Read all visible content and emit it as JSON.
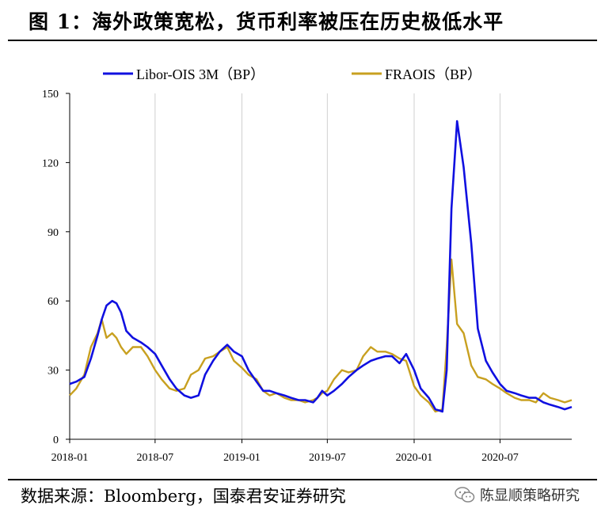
{
  "title": "图 1：海外政策宽松，货币利率被压在历史极低水平",
  "source": "数据来源：Bloomberg，国泰君安证券研究",
  "watermark": {
    "text": "陈显顺策略研究",
    "icon": "wechat-icon"
  },
  "colors": {
    "series1": "#1010e0",
    "series2": "#c8a020",
    "grid": "#d0d0d0"
  },
  "chart_data": {
    "type": "line",
    "grid": true,
    "legend_position": "top",
    "ylim": [
      0,
      150
    ],
    "yticks": [
      0,
      30,
      60,
      90,
      120,
      150
    ],
    "xticks": [
      "2018-01",
      "2018-07",
      "2019-01",
      "2019-07",
      "2020-01",
      "2020-07"
    ],
    "xlim": [
      "2018-01-01",
      "2020-11-30"
    ],
    "series": [
      {
        "name": "Libor-OIS 3M（BP）",
        "color": "#1010e0",
        "x": [
          "2018-01-01",
          "2018-01-15",
          "2018-02-01",
          "2018-02-15",
          "2018-03-01",
          "2018-03-10",
          "2018-03-20",
          "2018-04-01",
          "2018-04-10",
          "2018-04-20",
          "2018-05-01",
          "2018-05-15",
          "2018-06-01",
          "2018-06-15",
          "2018-07-01",
          "2018-07-15",
          "2018-08-01",
          "2018-08-15",
          "2018-09-01",
          "2018-09-15",
          "2018-10-01",
          "2018-10-15",
          "2018-11-01",
          "2018-11-15",
          "2018-12-01",
          "2018-12-15",
          "2019-01-01",
          "2019-01-15",
          "2019-02-01",
          "2019-02-15",
          "2019-03-01",
          "2019-03-15",
          "2019-04-01",
          "2019-04-15",
          "2019-05-01",
          "2019-05-15",
          "2019-06-01",
          "2019-06-10",
          "2019-06-20",
          "2019-07-01",
          "2019-07-15",
          "2019-08-01",
          "2019-08-15",
          "2019-09-01",
          "2019-09-15",
          "2019-10-01",
          "2019-10-15",
          "2019-11-01",
          "2019-11-15",
          "2019-12-01",
          "2019-12-15",
          "2020-01-01",
          "2020-01-15",
          "2020-02-01",
          "2020-02-15",
          "2020-03-01",
          "2020-03-10",
          "2020-03-20",
          "2020-04-01",
          "2020-04-15",
          "2020-05-01",
          "2020-05-15",
          "2020-06-01",
          "2020-06-15",
          "2020-07-01",
          "2020-07-15",
          "2020-08-01",
          "2020-08-15",
          "2020-09-01",
          "2020-09-15",
          "2020-10-01",
          "2020-10-15",
          "2020-11-01",
          "2020-11-15",
          "2020-11-30"
        ],
        "values": [
          24,
          25,
          27,
          35,
          45,
          52,
          58,
          60,
          59,
          55,
          47,
          44,
          42,
          40,
          37,
          32,
          26,
          22,
          19,
          18,
          19,
          28,
          34,
          38,
          41,
          38,
          36,
          30,
          25,
          21,
          21,
          20,
          19,
          18,
          17,
          17,
          16,
          18,
          21,
          19,
          21,
          24,
          27,
          30,
          32,
          34,
          35,
          36,
          36,
          33,
          37,
          30,
          22,
          18,
          13,
          12,
          30,
          100,
          138,
          118,
          85,
          48,
          34,
          29,
          24,
          21,
          20,
          19,
          18,
          18,
          16,
          15,
          14,
          13,
          14
        ]
      },
      {
        "name": "FRAOIS（BP）",
        "color": "#c8a020",
        "x": [
          "2018-01-01",
          "2018-01-15",
          "2018-02-01",
          "2018-02-15",
          "2018-03-01",
          "2018-03-10",
          "2018-03-20",
          "2018-04-01",
          "2018-04-10",
          "2018-04-20",
          "2018-05-01",
          "2018-05-15",
          "2018-06-01",
          "2018-06-15",
          "2018-07-01",
          "2018-07-15",
          "2018-08-01",
          "2018-08-15",
          "2018-09-01",
          "2018-09-15",
          "2018-10-01",
          "2018-10-15",
          "2018-11-01",
          "2018-11-15",
          "2018-12-01",
          "2018-12-15",
          "2019-01-01",
          "2019-01-15",
          "2019-02-01",
          "2019-02-15",
          "2019-03-01",
          "2019-03-15",
          "2019-04-01",
          "2019-04-15",
          "2019-05-01",
          "2019-05-15",
          "2019-06-01",
          "2019-06-10",
          "2019-06-20",
          "2019-07-01",
          "2019-07-15",
          "2019-08-01",
          "2019-08-15",
          "2019-09-01",
          "2019-09-15",
          "2019-10-01",
          "2019-10-15",
          "2019-11-01",
          "2019-11-15",
          "2019-12-01",
          "2019-12-15",
          "2020-01-01",
          "2020-01-15",
          "2020-02-01",
          "2020-02-15",
          "2020-03-01",
          "2020-03-10",
          "2020-03-20",
          "2020-04-01",
          "2020-04-15",
          "2020-05-01",
          "2020-05-15",
          "2020-06-01",
          "2020-06-15",
          "2020-07-01",
          "2020-07-15",
          "2020-08-01",
          "2020-08-15",
          "2020-09-01",
          "2020-09-15",
          "2020-10-01",
          "2020-10-15",
          "2020-11-01",
          "2020-11-15",
          "2020-11-30"
        ],
        "values": [
          19,
          22,
          28,
          40,
          46,
          52,
          44,
          46,
          44,
          40,
          37,
          40,
          40,
          36,
          30,
          26,
          22,
          21,
          22,
          28,
          30,
          35,
          36,
          38,
          40,
          34,
          31,
          28,
          26,
          21,
          19,
          20,
          18,
          17,
          17,
          16,
          17,
          18,
          20,
          21,
          26,
          30,
          29,
          30,
          36,
          40,
          38,
          38,
          37,
          35,
          34,
          23,
          19,
          16,
          12,
          13,
          40,
          78,
          50,
          46,
          32,
          27,
          26,
          24,
          22,
          20,
          18,
          17,
          17,
          16,
          20,
          18,
          17,
          16,
          17
        ]
      }
    ]
  }
}
